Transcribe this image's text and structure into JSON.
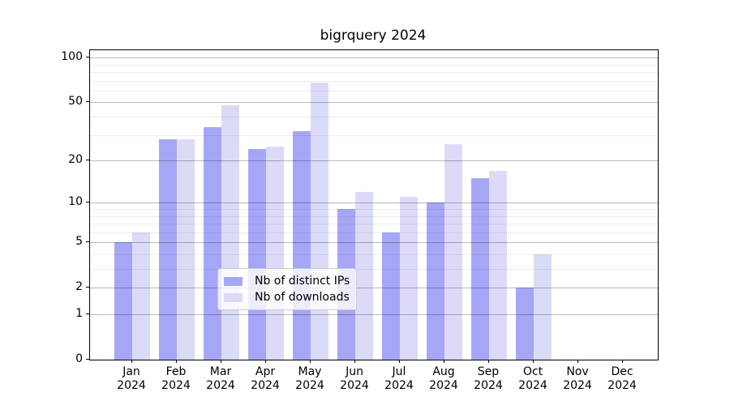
{
  "title": "bigrquery 2024",
  "chart_data": {
    "type": "bar",
    "title": "bigrquery 2024",
    "categories": [
      "Jan 2024",
      "Feb 2024",
      "Mar 2024",
      "Apr 2024",
      "May 2024",
      "Jun 2024",
      "Jul 2024",
      "Aug 2024",
      "Sep 2024",
      "Oct 2024",
      "Nov 2024",
      "Dec 2024"
    ],
    "month_line1": [
      "Jan",
      "Feb",
      "Mar",
      "Apr",
      "May",
      "Jun",
      "Jul",
      "Aug",
      "Sep",
      "Oct",
      "Nov",
      "Dec"
    ],
    "month_line2": "2024",
    "series": [
      {
        "name": "Nb of distinct IPs",
        "color": "#a6a6f7",
        "values": [
          5,
          28,
          34,
          24,
          32,
          9,
          6,
          10,
          15,
          2,
          0,
          0
        ]
      },
      {
        "name": "Nb of downloads",
        "color": "#dbdbf8",
        "values": [
          6,
          28,
          48,
          25,
          68,
          12,
          11,
          26,
          17,
          4,
          0,
          0
        ]
      }
    ],
    "ylabel": "",
    "xlabel": "",
    "y_scale": "log1p",
    "ylim": [
      0,
      112
    ],
    "y_major_ticks": [
      100,
      50,
      20,
      10,
      5,
      2,
      1,
      0
    ],
    "y_minor_gridlines": [
      3,
      4,
      6,
      7,
      8,
      9,
      30,
      40,
      60,
      70,
      80,
      90
    ],
    "grid": true,
    "legend_position": "lower center"
  }
}
